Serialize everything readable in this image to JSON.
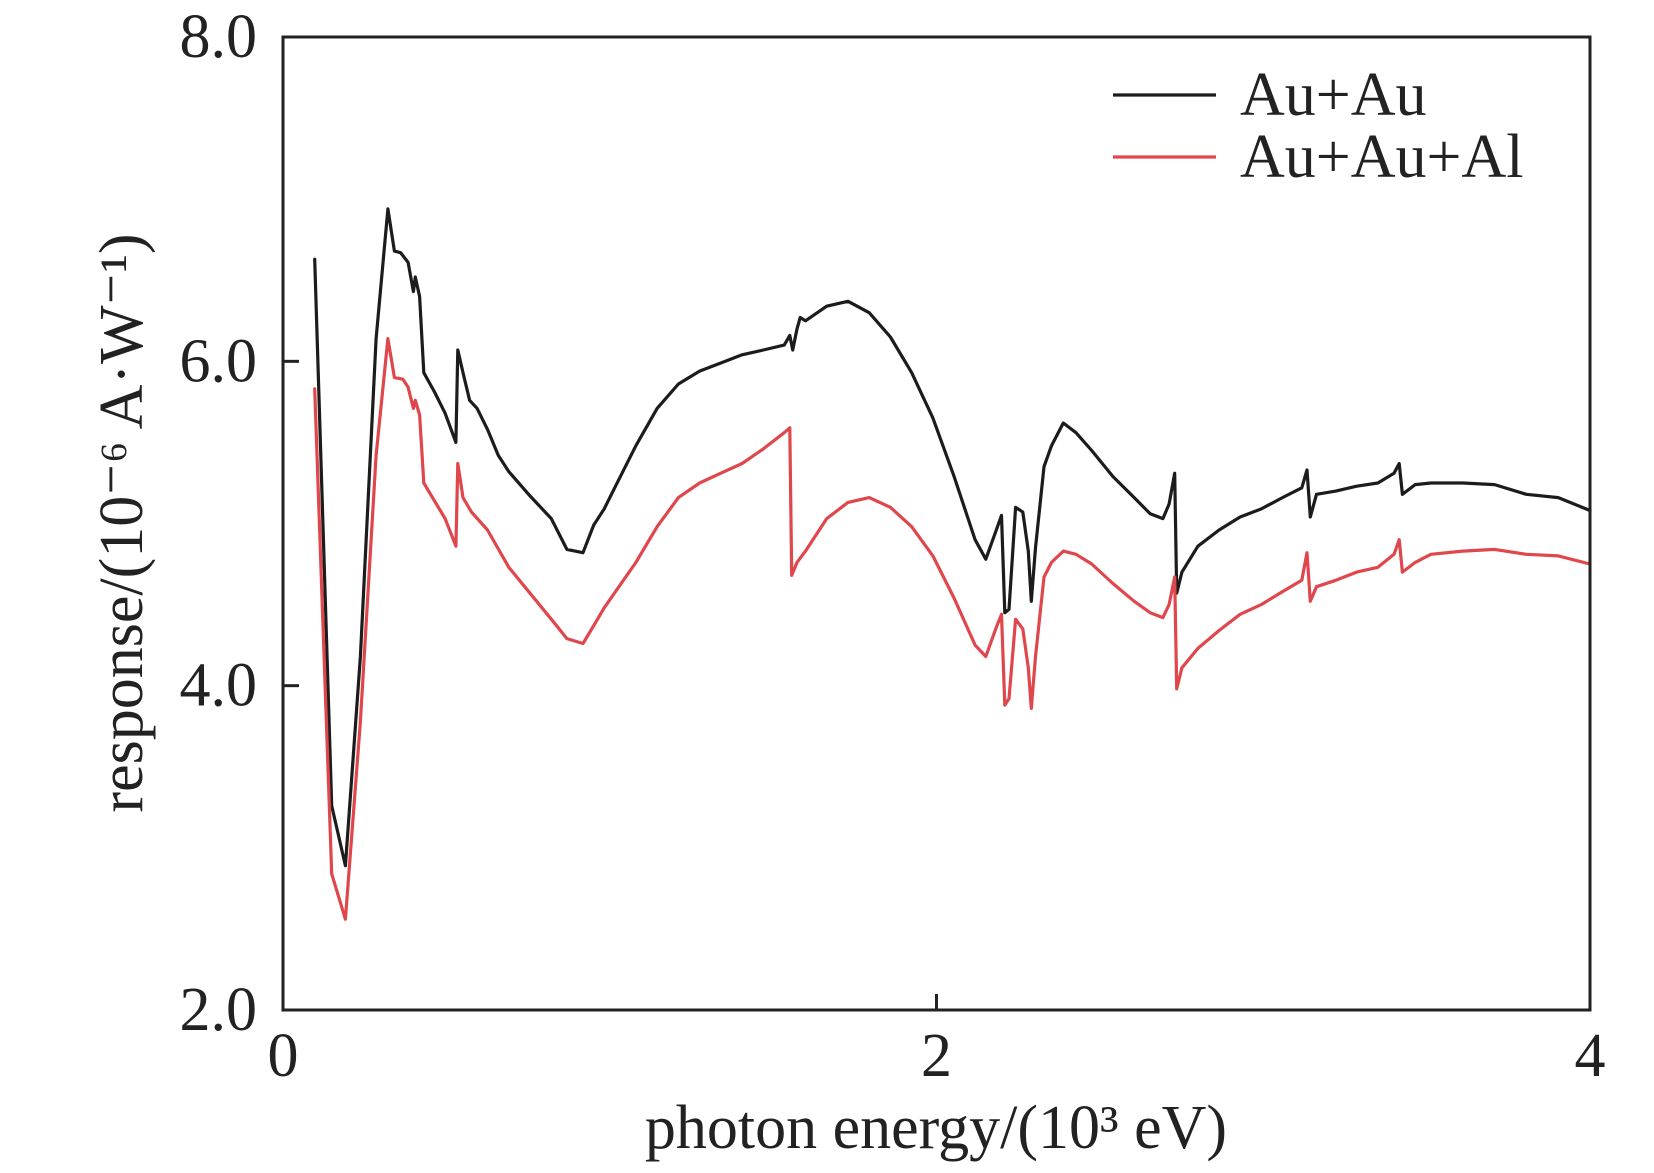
{
  "chart_data": {
    "type": "line",
    "title": "",
    "xlabel": "photon energy/(10³ eV)",
    "ylabel": "response/(10⁻⁶ A·W⁻¹)",
    "xlim": [
      0,
      4
    ],
    "ylim": [
      2.0,
      8.0
    ],
    "grid": false,
    "legend_position": "top-right",
    "x_ticks": [
      {
        "value": 0,
        "label": "0"
      },
      {
        "value": 2,
        "label": "2"
      },
      {
        "value": 4,
        "label": "4"
      }
    ],
    "y_ticks": [
      {
        "value": 2.0,
        "label": "2.0"
      },
      {
        "value": 4.0,
        "label": "4.0"
      },
      {
        "value": 6.0,
        "label": "6.0"
      },
      {
        "value": 8.0,
        "label": "8.0"
      }
    ],
    "series": [
      {
        "name": "Au+Au",
        "color": "#1c1c1c",
        "x": [
          0.097,
          0.149,
          0.191,
          0.237,
          0.285,
          0.321,
          0.341,
          0.36,
          0.383,
          0.399,
          0.405,
          0.418,
          0.431,
          0.464,
          0.496,
          0.529,
          0.535,
          0.551,
          0.571,
          0.594,
          0.626,
          0.659,
          0.691,
          0.756,
          0.821,
          0.869,
          0.918,
          0.951,
          0.983,
          1.015,
          1.08,
          1.145,
          1.21,
          1.275,
          1.34,
          1.405,
          1.47,
          1.534,
          1.551,
          1.56,
          1.573,
          1.583,
          1.599,
          1.664,
          1.729,
          1.794,
          1.859,
          1.924,
          1.989,
          2.054,
          2.118,
          2.151,
          2.183,
          2.199,
          2.209,
          2.222,
          2.242,
          2.264,
          2.281,
          2.29,
          2.303,
          2.329,
          2.352,
          2.388,
          2.427,
          2.475,
          2.54,
          2.605,
          2.654,
          2.693,
          2.712,
          2.729,
          2.735,
          2.751,
          2.8,
          2.865,
          2.929,
          2.994,
          3.059,
          3.118,
          3.134,
          3.144,
          3.163,
          3.222,
          3.286,
          3.351,
          3.4,
          3.416,
          3.426,
          3.465,
          3.513,
          3.611,
          3.708,
          3.805,
          3.903,
          4.0
        ],
        "y": [
          6.63,
          3.26,
          2.89,
          4.18,
          6.14,
          6.94,
          6.68,
          6.67,
          6.61,
          6.43,
          6.52,
          6.4,
          5.93,
          5.81,
          5.68,
          5.5,
          6.07,
          5.93,
          5.76,
          5.71,
          5.58,
          5.42,
          5.32,
          5.17,
          5.03,
          4.84,
          4.82,
          4.99,
          5.09,
          5.22,
          5.48,
          5.71,
          5.86,
          5.94,
          5.99,
          6.04,
          6.07,
          6.1,
          6.16,
          6.07,
          6.2,
          6.27,
          6.25,
          6.34,
          6.37,
          6.3,
          6.15,
          5.93,
          5.65,
          5.29,
          4.9,
          4.78,
          4.96,
          5.05,
          4.45,
          4.47,
          5.1,
          5.07,
          4.83,
          4.52,
          4.85,
          5.35,
          5.48,
          5.62,
          5.56,
          5.45,
          5.29,
          5.16,
          5.06,
          5.03,
          5.12,
          5.31,
          4.57,
          4.7,
          4.86,
          4.96,
          5.04,
          5.09,
          5.16,
          5.22,
          5.33,
          5.04,
          5.18,
          5.2,
          5.23,
          5.25,
          5.31,
          5.37,
          5.18,
          5.24,
          5.25,
          5.25,
          5.24,
          5.18,
          5.16,
          5.08
        ]
      },
      {
        "name": "Au+Au+Al",
        "color": "#e0474c",
        "x": [
          0.097,
          0.149,
          0.191,
          0.237,
          0.285,
          0.321,
          0.341,
          0.367,
          0.383,
          0.399,
          0.405,
          0.418,
          0.431,
          0.496,
          0.529,
          0.535,
          0.551,
          0.577,
          0.626,
          0.691,
          0.756,
          0.821,
          0.869,
          0.918,
          0.951,
          0.983,
          1.08,
          1.145,
          1.21,
          1.275,
          1.34,
          1.405,
          1.47,
          1.534,
          1.551,
          1.557,
          1.573,
          1.599,
          1.664,
          1.729,
          1.794,
          1.859,
          1.924,
          1.989,
          2.054,
          2.118,
          2.151,
          2.183,
          2.199,
          2.209,
          2.222,
          2.242,
          2.264,
          2.281,
          2.29,
          2.303,
          2.329,
          2.352,
          2.388,
          2.427,
          2.475,
          2.54,
          2.605,
          2.654,
          2.693,
          2.712,
          2.729,
          2.735,
          2.751,
          2.8,
          2.865,
          2.929,
          2.994,
          3.059,
          3.118,
          3.134,
          3.144,
          3.163,
          3.222,
          3.286,
          3.351,
          3.4,
          3.416,
          3.426,
          3.465,
          3.513,
          3.611,
          3.708,
          3.805,
          3.903,
          4.0
        ],
        "y": [
          5.83,
          2.84,
          2.56,
          3.78,
          5.42,
          6.14,
          5.9,
          5.89,
          5.84,
          5.71,
          5.76,
          5.67,
          5.25,
          5.03,
          4.86,
          5.37,
          5.16,
          5.07,
          4.96,
          4.73,
          4.57,
          4.41,
          4.29,
          4.26,
          4.37,
          4.48,
          4.76,
          4.98,
          5.16,
          5.25,
          5.31,
          5.37,
          5.46,
          5.56,
          5.59,
          4.68,
          4.76,
          4.83,
          5.03,
          5.13,
          5.16,
          5.1,
          4.98,
          4.8,
          4.54,
          4.25,
          4.18,
          4.36,
          4.44,
          3.88,
          3.92,
          4.41,
          4.35,
          4.11,
          3.86,
          4.18,
          4.67,
          4.76,
          4.83,
          4.81,
          4.75,
          4.63,
          4.52,
          4.45,
          4.42,
          4.5,
          4.67,
          3.98,
          4.11,
          4.23,
          4.34,
          4.44,
          4.5,
          4.58,
          4.65,
          4.82,
          4.52,
          4.61,
          4.65,
          4.7,
          4.73,
          4.81,
          4.9,
          4.7,
          4.76,
          4.81,
          4.83,
          4.84,
          4.81,
          4.8,
          4.75
        ]
      }
    ]
  }
}
